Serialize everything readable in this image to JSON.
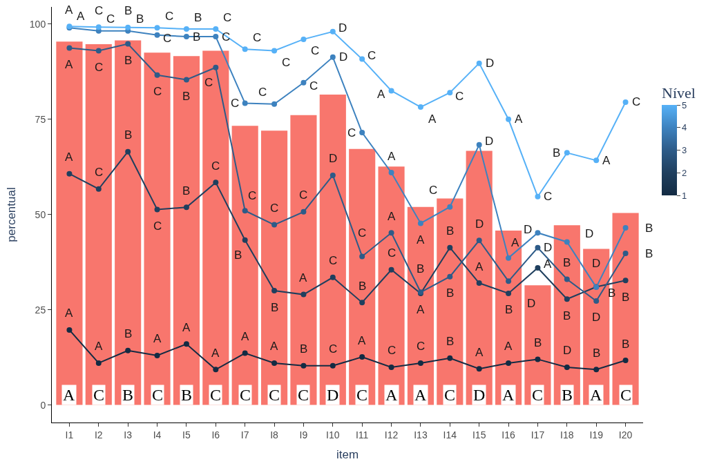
{
  "chart_data": {
    "type": "bar",
    "xlabel": "item",
    "ylabel": "percentual",
    "clabel": "Nível",
    "clim": [
      1,
      5
    ],
    "cticks": [
      1,
      2,
      3,
      4,
      5
    ],
    "categories": [
      "I1",
      "I2",
      "I3",
      "I4",
      "I5",
      "I6",
      "I7",
      "I8",
      "I9",
      "I10",
      "I11",
      "I12",
      "I13",
      "I14",
      "I15",
      "I16",
      "I17",
      "I18",
      "I19",
      "I20"
    ],
    "ylim": [
      -4.6,
      104.5
    ],
    "yticks": [
      0,
      25,
      50,
      75,
      100
    ],
    "grid": false,
    "marker": "circle",
    "line_style": "solid",
    "series": [
      {
        "color": "#f8766d",
        "values": [
          95.4,
          94.7,
          95.7,
          92.5,
          91.6,
          93,
          73.3,
          72,
          76.1,
          81.5,
          67.2,
          62.6,
          52,
          54.2,
          66.7,
          45.8,
          31.4,
          47.2,
          41,
          50.4
        ],
        "value_labels": [
          "A",
          "C",
          "B",
          "C",
          "B",
          "C",
          "C",
          "C",
          "C",
          "D",
          "C",
          "A",
          "A",
          "C",
          "D",
          "A",
          "C",
          "B",
          "A",
          "C"
        ]
      },
      {
        "type": "line",
        "color": "#132b43",
        "values": [
          19.7,
          11,
          14.3,
          13,
          16,
          9.3,
          13.6,
          11,
          10.3,
          10.3,
          12.6,
          9.9,
          11,
          12.3,
          9.5,
          11,
          12,
          9.9,
          9.3,
          11.7
        ],
        "value_labels": [
          "A",
          "A",
          "B",
          "A",
          "A",
          "A",
          "A",
          "A",
          "B",
          "C",
          "A",
          "C",
          "C",
          "B",
          "A",
          "A",
          "B",
          "D",
          "B",
          "B"
        ]
      },
      {
        "type": "line",
        "color": "#1f3f5e",
        "values": [
          60.7,
          56.7,
          66.5,
          51.3,
          51.9,
          58.4,
          43.3,
          30,
          29,
          33.5,
          26.9,
          35.5,
          29.3,
          41.3,
          32,
          29.3,
          36,
          27.8,
          31,
          32.7
        ],
        "value_labels": [
          "A",
          "C",
          "B",
          "C",
          "B",
          "C",
          "B",
          "B",
          "A",
          "C",
          "B",
          "C",
          "A",
          "B",
          "A",
          "B",
          "A",
          "B",
          "D",
          "B"
        ]
      },
      {
        "type": "line",
        "color": "#2d5b88",
        "values": [
          93.7,
          93,
          94.8,
          86.6,
          85.4,
          88.6,
          51,
          47.3,
          50.7,
          60.3,
          39,
          45.2,
          29.6,
          33.7,
          43.2,
          32.5,
          41.3,
          33,
          27.3,
          39.8
        ],
        "value_labels": [
          "A",
          "C",
          "B",
          "C",
          "B",
          "C",
          "C",
          "C",
          "C",
          "D",
          "C",
          "A",
          "B",
          "B",
          "D",
          "D",
          "D",
          "B",
          "D",
          "B"
        ]
      },
      {
        "type": "line",
        "color": "#3d82bf",
        "values": [
          99,
          98.2,
          98.2,
          97.1,
          96.7,
          96.7,
          79.2,
          79,
          84.6,
          91.3,
          71.5,
          61,
          47.7,
          52,
          68.3,
          38.6,
          45.2,
          42.8,
          30.9,
          46.5
        ],
        "value_labels": [
          "A",
          "C",
          "B",
          "C",
          "B",
          "C",
          "C",
          "C",
          "C",
          "D",
          "C",
          "A",
          "A",
          "C",
          "D",
          "A",
          "D",
          "D",
          "B",
          "B"
        ]
      },
      {
        "type": "line",
        "color": "#56b1f7",
        "values": [
          99.4,
          99.2,
          99.1,
          99,
          98.7,
          98.7,
          93.4,
          93,
          96,
          98,
          90.8,
          82.5,
          78.2,
          82,
          89.7,
          75,
          54.7,
          66.2,
          64.2,
          79.5
        ],
        "value_labels": [
          "A",
          "C",
          "B",
          "C",
          "B",
          "C",
          "C",
          "C",
          "C",
          "D",
          "C",
          "A",
          "A",
          "C",
          "D",
          "A",
          "C",
          "B",
          "A",
          "C"
        ]
      }
    ]
  }
}
